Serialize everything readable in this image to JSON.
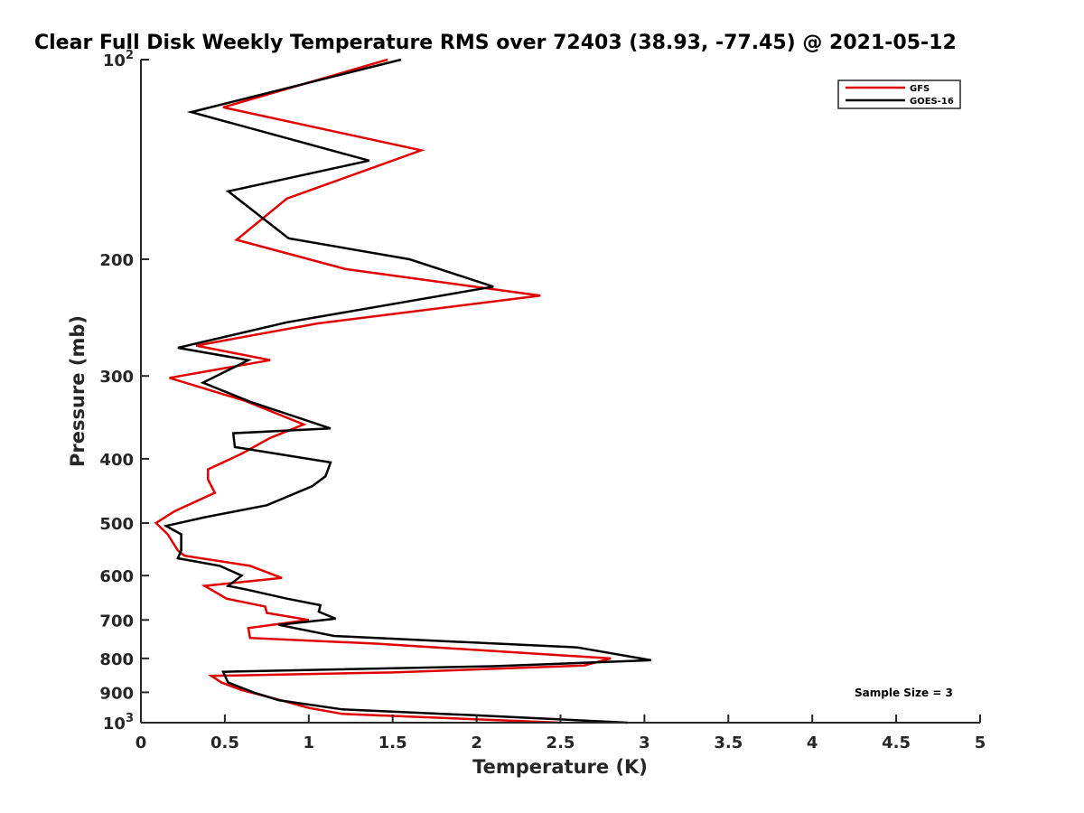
{
  "chart_data": {
    "type": "line",
    "title": "Clear Full Disk Weekly Temperature RMS over 72403 (38.93, -77.45) @ 2021-05-12",
    "xlabel": "Temperature (K)",
    "ylabel": "Pressure (mb)",
    "xlim": [
      0,
      5
    ],
    "ylim": [
      100,
      1000
    ],
    "y_scale": "log",
    "y_reversed": true,
    "grid": false,
    "legend_position": "top-right",
    "x_ticks": [
      "0",
      "0.5",
      "1",
      "1.5",
      "2",
      "2.5",
      "3",
      "3.5",
      "4",
      "4.5",
      "5"
    ],
    "y_ticks": [
      {
        "value": 100,
        "label": "10",
        "sup": "2"
      },
      {
        "value": 200,
        "label": "200"
      },
      {
        "value": 300,
        "label": "300"
      },
      {
        "value": 400,
        "label": "400"
      },
      {
        "value": 500,
        "label": "500"
      },
      {
        "value": 600,
        "label": "600"
      },
      {
        "value": 700,
        "label": "700"
      },
      {
        "value": 800,
        "label": "800"
      },
      {
        "value": 900,
        "label": "900"
      },
      {
        "value": 1000,
        "label": "10",
        "sup": "3"
      }
    ],
    "annotation": "Sample Size = 3",
    "series": [
      {
        "name": "GFS",
        "color": "#e00000",
        "points": [
          [
            1.47,
            100
          ],
          [
            0.49,
            118
          ],
          [
            1.67,
            137
          ],
          [
            0.87,
            162
          ],
          [
            0.57,
            187
          ],
          [
            1.22,
            207
          ],
          [
            2.38,
            227
          ],
          [
            1.05,
            250
          ],
          [
            0.33,
            270
          ],
          [
            0.77,
            284
          ],
          [
            0.17,
            302
          ],
          [
            0.62,
            327
          ],
          [
            0.97,
            355
          ],
          [
            0.77,
            372
          ],
          [
            0.6,
            393
          ],
          [
            0.4,
            415
          ],
          [
            0.4,
            430
          ],
          [
            0.44,
            450
          ],
          [
            0.2,
            480
          ],
          [
            0.09,
            500
          ],
          [
            0.16,
            520
          ],
          [
            0.22,
            550
          ],
          [
            0.26,
            560
          ],
          [
            0.65,
            580
          ],
          [
            0.84,
            605
          ],
          [
            0.38,
            622
          ],
          [
            0.51,
            650
          ],
          [
            0.74,
            668
          ],
          [
            0.75,
            683
          ],
          [
            1.0,
            700
          ],
          [
            0.64,
            720
          ],
          [
            0.65,
            745
          ],
          [
            1.4,
            760
          ],
          [
            2.8,
            800
          ],
          [
            2.64,
            820
          ],
          [
            1.5,
            840
          ],
          [
            0.42,
            850
          ],
          [
            0.48,
            870
          ],
          [
            0.6,
            893
          ],
          [
            0.8,
            920
          ],
          [
            1.0,
            950
          ],
          [
            1.2,
            970
          ],
          [
            2.5,
            1000
          ]
        ]
      },
      {
        "name": "GOES-16",
        "color": "#000000",
        "points": [
          [
            1.55,
            100
          ],
          [
            0.3,
            120
          ],
          [
            1.36,
            142
          ],
          [
            0.52,
            158
          ],
          [
            0.88,
            186
          ],
          [
            1.6,
            200
          ],
          [
            2.1,
            220
          ],
          [
            0.87,
            249
          ],
          [
            0.22,
            272
          ],
          [
            0.64,
            284
          ],
          [
            0.37,
            307
          ],
          [
            0.65,
            328
          ],
          [
            1.13,
            360
          ],
          [
            0.55,
            366
          ],
          [
            0.56,
            384
          ],
          [
            1.13,
            405
          ],
          [
            1.1,
            425
          ],
          [
            1.02,
            440
          ],
          [
            0.75,
            470
          ],
          [
            0.38,
            490
          ],
          [
            0.15,
            505
          ],
          [
            0.24,
            520
          ],
          [
            0.24,
            550
          ],
          [
            0.22,
            565
          ],
          [
            0.47,
            580
          ],
          [
            0.6,
            600
          ],
          [
            0.52,
            622
          ],
          [
            0.63,
            630
          ],
          [
            0.87,
            650
          ],
          [
            1.07,
            665
          ],
          [
            1.06,
            680
          ],
          [
            1.16,
            697
          ],
          [
            0.82,
            712
          ],
          [
            1.15,
            740
          ],
          [
            2.6,
            770
          ],
          [
            3.04,
            805
          ],
          [
            2.1,
            822
          ],
          [
            0.49,
            838
          ],
          [
            0.52,
            870
          ],
          [
            0.67,
            900
          ],
          [
            0.82,
            925
          ],
          [
            1.2,
            955
          ],
          [
            2.0,
            975
          ],
          [
            2.9,
            1000
          ]
        ]
      }
    ]
  }
}
